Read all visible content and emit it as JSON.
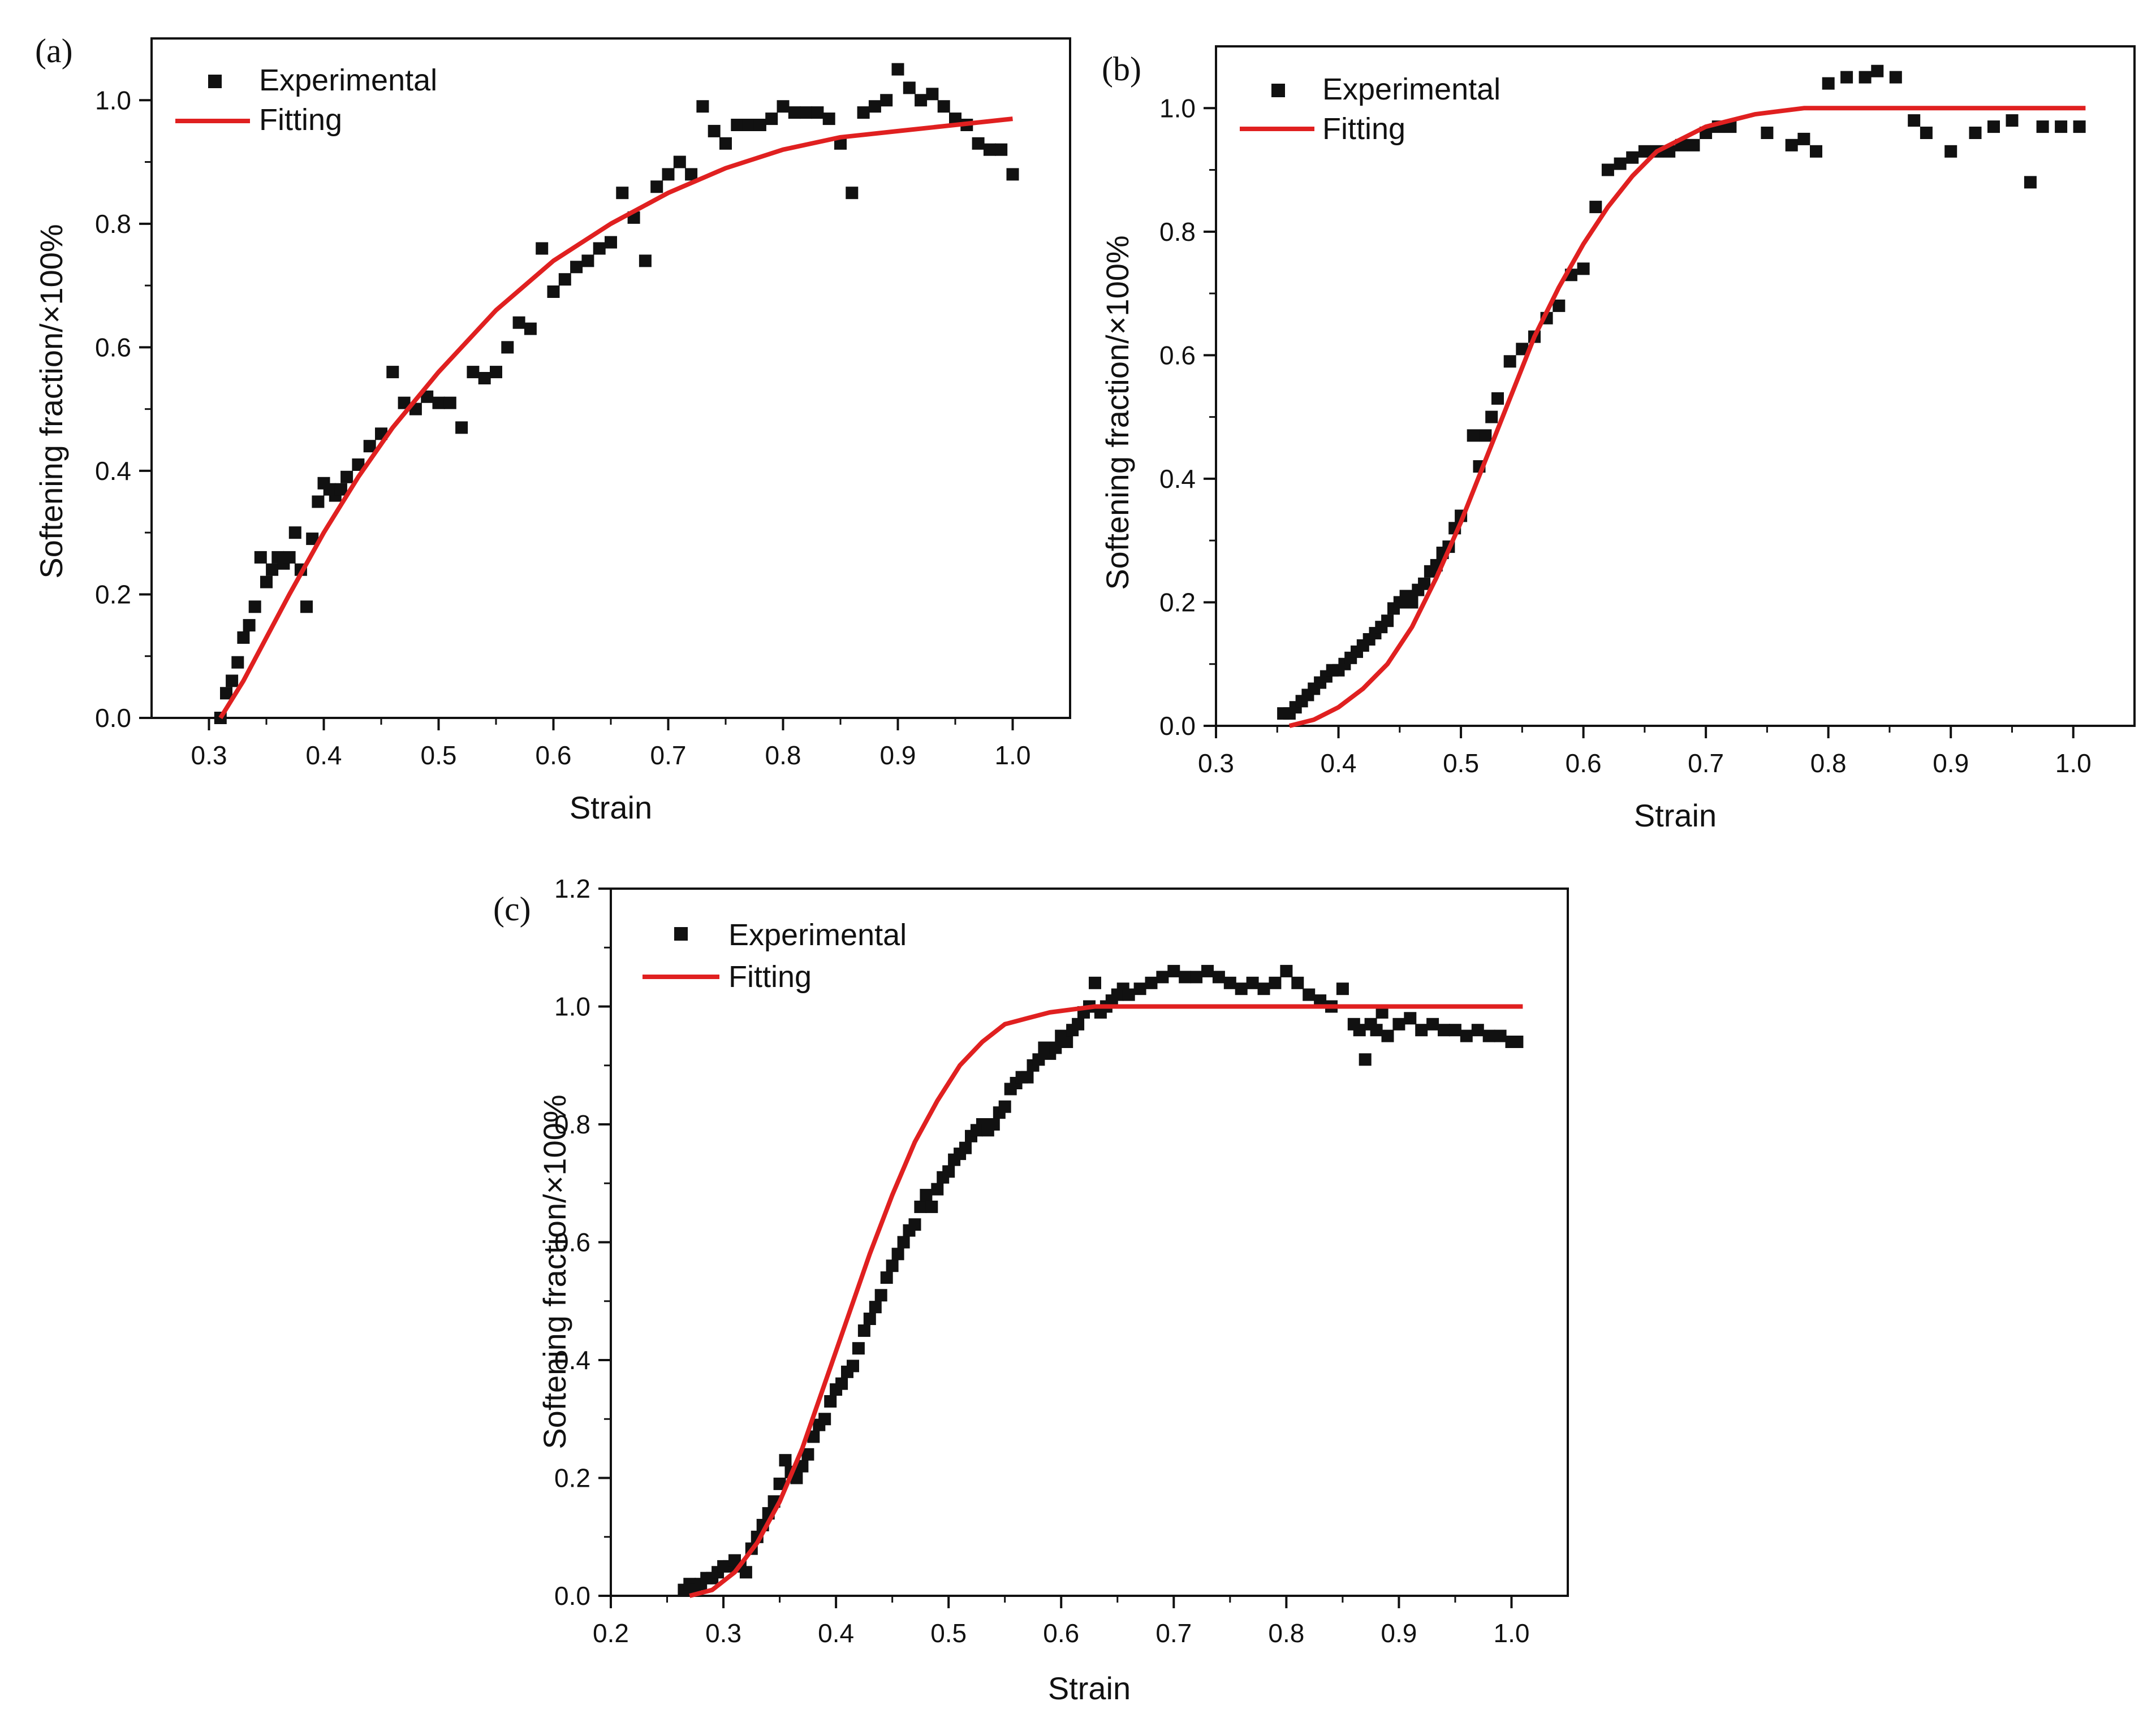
{
  "figure": {
    "panels": [
      "(a)",
      "(b)",
      "(c)"
    ]
  },
  "colors": {
    "fit": "#e02020",
    "marker": "#111111",
    "axis": "#111111",
    "background": "#ffffff"
  },
  "chart_data": [
    {
      "panel": "(a)",
      "type": "scatter",
      "xlabel": "Strain",
      "ylabel": "Softening fraction/×100%",
      "xlim": [
        0.25,
        1.05
      ],
      "ylim": [
        0.0,
        1.1
      ],
      "xticks": [
        "0.3",
        "0.4",
        "0.5",
        "0.6",
        "0.7",
        "0.8",
        "0.9",
        "1.0"
      ],
      "yticks": [
        "0.0",
        "0.2",
        "0.4",
        "0.6",
        "0.8",
        "1.0"
      ],
      "legend": [
        "Experimental",
        "Fitting"
      ],
      "legend_position": "top-left",
      "series": [
        {
          "name": "Experimental",
          "style": "square-marker",
          "x": [
            0.31,
            0.315,
            0.32,
            0.325,
            0.33,
            0.335,
            0.34,
            0.345,
            0.35,
            0.355,
            0.36,
            0.365,
            0.37,
            0.375,
            0.38,
            0.385,
            0.39,
            0.395,
            0.4,
            0.405,
            0.41,
            0.415,
            0.42,
            0.43,
            0.44,
            0.45,
            0.46,
            0.47,
            0.48,
            0.49,
            0.5,
            0.51,
            0.52,
            0.53,
            0.54,
            0.55,
            0.56,
            0.57,
            0.58,
            0.59,
            0.6,
            0.61,
            0.62,
            0.63,
            0.64,
            0.65,
            0.66,
            0.67,
            0.68,
            0.69,
            0.7,
            0.71,
            0.72,
            0.73,
            0.74,
            0.75,
            0.76,
            0.77,
            0.78,
            0.79,
            0.8,
            0.81,
            0.82,
            0.83,
            0.84,
            0.85,
            0.86,
            0.87,
            0.88,
            0.89,
            0.9,
            0.91,
            0.92,
            0.93,
            0.94,
            0.95,
            0.96,
            0.97,
            0.98,
            0.99,
            1.0
          ],
          "y": [
            0.0,
            0.04,
            0.06,
            0.09,
            0.13,
            0.15,
            0.18,
            0.26,
            0.22,
            0.24,
            0.26,
            0.25,
            0.26,
            0.3,
            0.24,
            0.18,
            0.29,
            0.35,
            0.38,
            0.37,
            0.36,
            0.37,
            0.39,
            0.41,
            0.44,
            0.46,
            0.56,
            0.51,
            0.5,
            0.52,
            0.51,
            0.51,
            0.47,
            0.56,
            0.55,
            0.56,
            0.6,
            0.64,
            0.63,
            0.76,
            0.69,
            0.71,
            0.73,
            0.74,
            0.76,
            0.77,
            0.85,
            0.81,
            0.74,
            0.86,
            0.88,
            0.9,
            0.88,
            0.99,
            0.95,
            0.93,
            0.96,
            0.96,
            0.96,
            0.97,
            0.99,
            0.98,
            0.98,
            0.98,
            0.97,
            0.93,
            0.85,
            0.98,
            0.99,
            1.0,
            1.05,
            1.02,
            1.0,
            1.01,
            0.99,
            0.97,
            0.96,
            0.93,
            0.92,
            0.92,
            0.88
          ]
        },
        {
          "name": "Fitting",
          "style": "line",
          "x": [
            0.31,
            0.33,
            0.35,
            0.37,
            0.4,
            0.43,
            0.46,
            0.5,
            0.55,
            0.6,
            0.65,
            0.7,
            0.75,
            0.8,
            0.85,
            0.9,
            0.95,
            1.0
          ],
          "y": [
            0.0,
            0.06,
            0.13,
            0.2,
            0.3,
            0.39,
            0.47,
            0.56,
            0.66,
            0.74,
            0.8,
            0.85,
            0.89,
            0.92,
            0.94,
            0.95,
            0.96,
            0.97
          ]
        }
      ]
    },
    {
      "panel": "(b)",
      "type": "scatter",
      "xlabel": "Strain",
      "ylabel": "Softening fraction/×100%",
      "xlim": [
        0.3,
        1.05
      ],
      "ylim": [
        0.0,
        1.1
      ],
      "xticks": [
        "0.3",
        "0.4",
        "0.5",
        "0.6",
        "0.7",
        "0.8",
        "0.9",
        "1.0"
      ],
      "yticks": [
        "0.0",
        "0.2",
        "0.4",
        "0.6",
        "0.8",
        "1.0"
      ],
      "legend": [
        "Experimental",
        "Fitting"
      ],
      "legend_position": "top-left",
      "series": [
        {
          "name": "Experimental",
          "style": "square-marker",
          "x": [
            0.355,
            0.36,
            0.365,
            0.37,
            0.375,
            0.38,
            0.385,
            0.39,
            0.395,
            0.4,
            0.405,
            0.41,
            0.415,
            0.42,
            0.425,
            0.43,
            0.435,
            0.44,
            0.445,
            0.45,
            0.455,
            0.46,
            0.465,
            0.47,
            0.475,
            0.48,
            0.485,
            0.49,
            0.495,
            0.5,
            0.51,
            0.515,
            0.52,
            0.525,
            0.53,
            0.54,
            0.55,
            0.56,
            0.57,
            0.58,
            0.59,
            0.6,
            0.61,
            0.62,
            0.63,
            0.64,
            0.65,
            0.66,
            0.67,
            0.68,
            0.69,
            0.7,
            0.71,
            0.72,
            0.75,
            0.77,
            0.78,
            0.79,
            0.8,
            0.815,
            0.83,
            0.84,
            0.855,
            0.87,
            0.88,
            0.9,
            0.92,
            0.935,
            0.95,
            0.965,
            0.975,
            0.99,
            1.005
          ],
          "y": [
            0.02,
            0.02,
            0.03,
            0.04,
            0.05,
            0.06,
            0.07,
            0.08,
            0.09,
            0.09,
            0.1,
            0.11,
            0.12,
            0.13,
            0.14,
            0.15,
            0.16,
            0.17,
            0.19,
            0.2,
            0.21,
            0.2,
            0.22,
            0.23,
            0.25,
            0.26,
            0.28,
            0.29,
            0.32,
            0.34,
            0.47,
            0.42,
            0.47,
            0.5,
            0.53,
            0.59,
            0.61,
            0.63,
            0.66,
            0.68,
            0.73,
            0.74,
            0.84,
            0.9,
            0.91,
            0.92,
            0.93,
            0.93,
            0.93,
            0.94,
            0.94,
            0.96,
            0.97,
            0.97,
            0.96,
            0.94,
            0.95,
            0.93,
            1.04,
            1.05,
            1.05,
            1.06,
            1.05,
            0.98,
            0.96,
            0.93,
            0.96,
            0.97,
            0.98,
            0.88,
            0.97,
            0.97,
            0.97
          ]
        },
        {
          "name": "Fitting",
          "style": "line",
          "x": [
            0.36,
            0.38,
            0.4,
            0.42,
            0.44,
            0.46,
            0.48,
            0.5,
            0.52,
            0.54,
            0.56,
            0.58,
            0.6,
            0.62,
            0.64,
            0.66,
            0.68,
            0.7,
            0.72,
            0.74,
            0.76,
            0.78,
            0.8,
            0.85,
            0.9,
            0.95,
            1.01
          ],
          "y": [
            0.0,
            0.01,
            0.03,
            0.06,
            0.1,
            0.16,
            0.24,
            0.33,
            0.43,
            0.53,
            0.63,
            0.71,
            0.78,
            0.84,
            0.89,
            0.93,
            0.95,
            0.97,
            0.98,
            0.99,
            0.995,
            1.0,
            1.0,
            1.0,
            1.0,
            1.0,
            1.0
          ]
        }
      ]
    },
    {
      "panel": "(c)",
      "type": "scatter",
      "xlabel": "Strain",
      "ylabel": "Softening fraction/×100%",
      "xlim": [
        0.2,
        1.05
      ],
      "ylim": [
        0.0,
        1.2
      ],
      "xticks": [
        "0.2",
        "0.3",
        "0.4",
        "0.5",
        "0.6",
        "0.7",
        "0.8",
        "0.9",
        "1.0"
      ],
      "yticks": [
        "0.0",
        "0.2",
        "0.4",
        "0.6",
        "0.8",
        "1.0",
        "1.2"
      ],
      "legend": [
        "Experimental",
        "Fitting"
      ],
      "legend_position": "top-left",
      "series": [
        {
          "name": "Experimental",
          "style": "square-marker",
          "x": [
            0.265,
            0.27,
            0.275,
            0.28,
            0.285,
            0.29,
            0.295,
            0.3,
            0.305,
            0.31,
            0.315,
            0.32,
            0.325,
            0.33,
            0.335,
            0.34,
            0.345,
            0.35,
            0.355,
            0.36,
            0.365,
            0.37,
            0.375,
            0.38,
            0.385,
            0.39,
            0.395,
            0.4,
            0.405,
            0.41,
            0.415,
            0.42,
            0.425,
            0.43,
            0.435,
            0.44,
            0.445,
            0.45,
            0.455,
            0.46,
            0.465,
            0.47,
            0.475,
            0.48,
            0.485,
            0.49,
            0.495,
            0.5,
            0.505,
            0.51,
            0.515,
            0.52,
            0.525,
            0.53,
            0.535,
            0.54,
            0.545,
            0.55,
            0.555,
            0.56,
            0.565,
            0.57,
            0.575,
            0.58,
            0.585,
            0.59,
            0.595,
            0.6,
            0.605,
            0.61,
            0.615,
            0.62,
            0.625,
            0.63,
            0.635,
            0.64,
            0.645,
            0.65,
            0.655,
            0.66,
            0.67,
            0.68,
            0.69,
            0.7,
            0.71,
            0.72,
            0.73,
            0.74,
            0.75,
            0.76,
            0.77,
            0.78,
            0.79,
            0.8,
            0.81,
            0.82,
            0.83,
            0.84,
            0.85,
            0.86,
            0.865,
            0.87,
            0.875,
            0.88,
            0.885,
            0.89,
            0.9,
            0.91,
            0.92,
            0.93,
            0.94,
            0.95,
            0.96,
            0.97,
            0.98,
            0.99,
            1.0,
            1.005
          ],
          "y": [
            0.01,
            0.02,
            0.01,
            0.02,
            0.03,
            0.03,
            0.04,
            0.05,
            0.05,
            0.06,
            0.05,
            0.04,
            0.08,
            0.1,
            0.12,
            0.14,
            0.16,
            0.19,
            0.23,
            0.21,
            0.2,
            0.22,
            0.24,
            0.27,
            0.29,
            0.3,
            0.33,
            0.35,
            0.36,
            0.38,
            0.39,
            0.42,
            0.45,
            0.47,
            0.49,
            0.51,
            0.54,
            0.56,
            0.58,
            0.6,
            0.62,
            0.63,
            0.66,
            0.68,
            0.66,
            0.69,
            0.71,
            0.72,
            0.74,
            0.75,
            0.76,
            0.78,
            0.79,
            0.8,
            0.79,
            0.8,
            0.82,
            0.83,
            0.86,
            0.87,
            0.88,
            0.88,
            0.9,
            0.91,
            0.93,
            0.92,
            0.93,
            0.95,
            0.94,
            0.96,
            0.97,
            0.99,
            1.0,
            1.04,
            0.99,
            1.0,
            1.01,
            1.02,
            1.03,
            1.02,
            1.03,
            1.04,
            1.05,
            1.06,
            1.05,
            1.05,
            1.06,
            1.05,
            1.04,
            1.03,
            1.04,
            1.03,
            1.04,
            1.06,
            1.04,
            1.02,
            1.01,
            1.0,
            1.03,
            0.97,
            0.96,
            0.91,
            0.97,
            0.96,
            0.99,
            0.95,
            0.97,
            0.98,
            0.96,
            0.97,
            0.96,
            0.96,
            0.95,
            0.96,
            0.95,
            0.95,
            0.94,
            0.94
          ]
        },
        {
          "name": "Fitting",
          "style": "line",
          "x": [
            0.27,
            0.29,
            0.31,
            0.33,
            0.35,
            0.37,
            0.39,
            0.41,
            0.43,
            0.45,
            0.47,
            0.49,
            0.51,
            0.53,
            0.55,
            0.57,
            0.59,
            0.61,
            0.63,
            0.65,
            0.67,
            0.7,
            0.75,
            0.8,
            0.9,
            1.01
          ],
          "y": [
            0.0,
            0.01,
            0.04,
            0.09,
            0.16,
            0.25,
            0.36,
            0.47,
            0.58,
            0.68,
            0.77,
            0.84,
            0.9,
            0.94,
            0.97,
            0.98,
            0.99,
            0.995,
            1.0,
            1.0,
            1.0,
            1.0,
            1.0,
            1.0,
            1.0,
            1.0
          ]
        }
      ]
    }
  ]
}
